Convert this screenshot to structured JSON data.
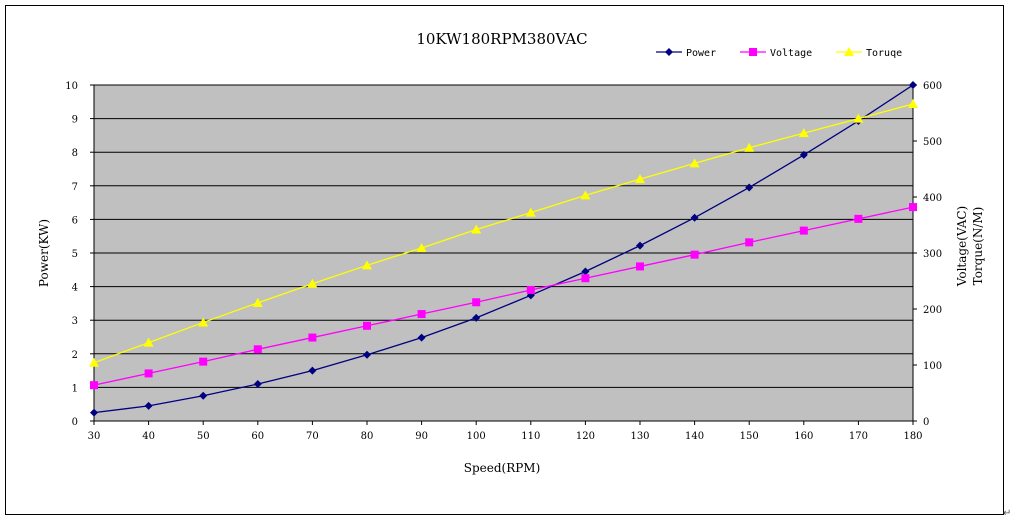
{
  "chart_data": {
    "type": "line",
    "title": "10KW180RPM380VAC",
    "xlabel": "Speed(RPM)",
    "ylabel_left": "Power(KW)",
    "ylabel_right_1": "Voltage(VAC)",
    "ylabel_right_2": "Torque(N/M)",
    "x": [
      30,
      40,
      50,
      60,
      70,
      80,
      90,
      100,
      110,
      120,
      130,
      140,
      150,
      160,
      170,
      180
    ],
    "xlim": [
      30,
      180
    ],
    "ylim_left": [
      0,
      10
    ],
    "ylim_right": [
      0,
      600
    ],
    "x_ticks": [
      "30",
      "40",
      "50",
      "60",
      "70",
      "80",
      "90",
      "100",
      "110",
      "120",
      "130",
      "140",
      "150",
      "160",
      "170",
      "180"
    ],
    "y_ticks_left": [
      "0",
      "1",
      "2",
      "3",
      "4",
      "5",
      "6",
      "7",
      "8",
      "9",
      "10"
    ],
    "y_ticks_right": [
      "0",
      "100",
      "200",
      "300",
      "400",
      "500",
      "600"
    ],
    "grid": true,
    "legend_position": "top-right",
    "plot_background": "#c0c0c0",
    "series": [
      {
        "name": "Power",
        "axis": "left",
        "color": "#000080",
        "marker": "diamond",
        "values": [
          0.25,
          0.45,
          0.75,
          1.1,
          1.5,
          1.97,
          2.48,
          3.07,
          3.74,
          4.45,
          5.22,
          6.05,
          6.95,
          7.92,
          8.93,
          10.0
        ]
      },
      {
        "name": "Voltage",
        "axis": "right",
        "color": "#ff00ff",
        "marker": "square",
        "values": [
          64,
          85,
          106,
          128,
          149,
          170,
          191,
          212,
          234,
          255,
          276,
          297,
          319,
          340,
          361,
          382
        ]
      },
      {
        "name": "Toruqe",
        "axis": "right",
        "color": "#ffff00",
        "marker": "triangle",
        "values": [
          104,
          140,
          176,
          211,
          245,
          278,
          309,
          342,
          372,
          403,
          432,
          460,
          488,
          514,
          540,
          566
        ]
      }
    ]
  },
  "page": {
    "return_mark": "↵"
  }
}
